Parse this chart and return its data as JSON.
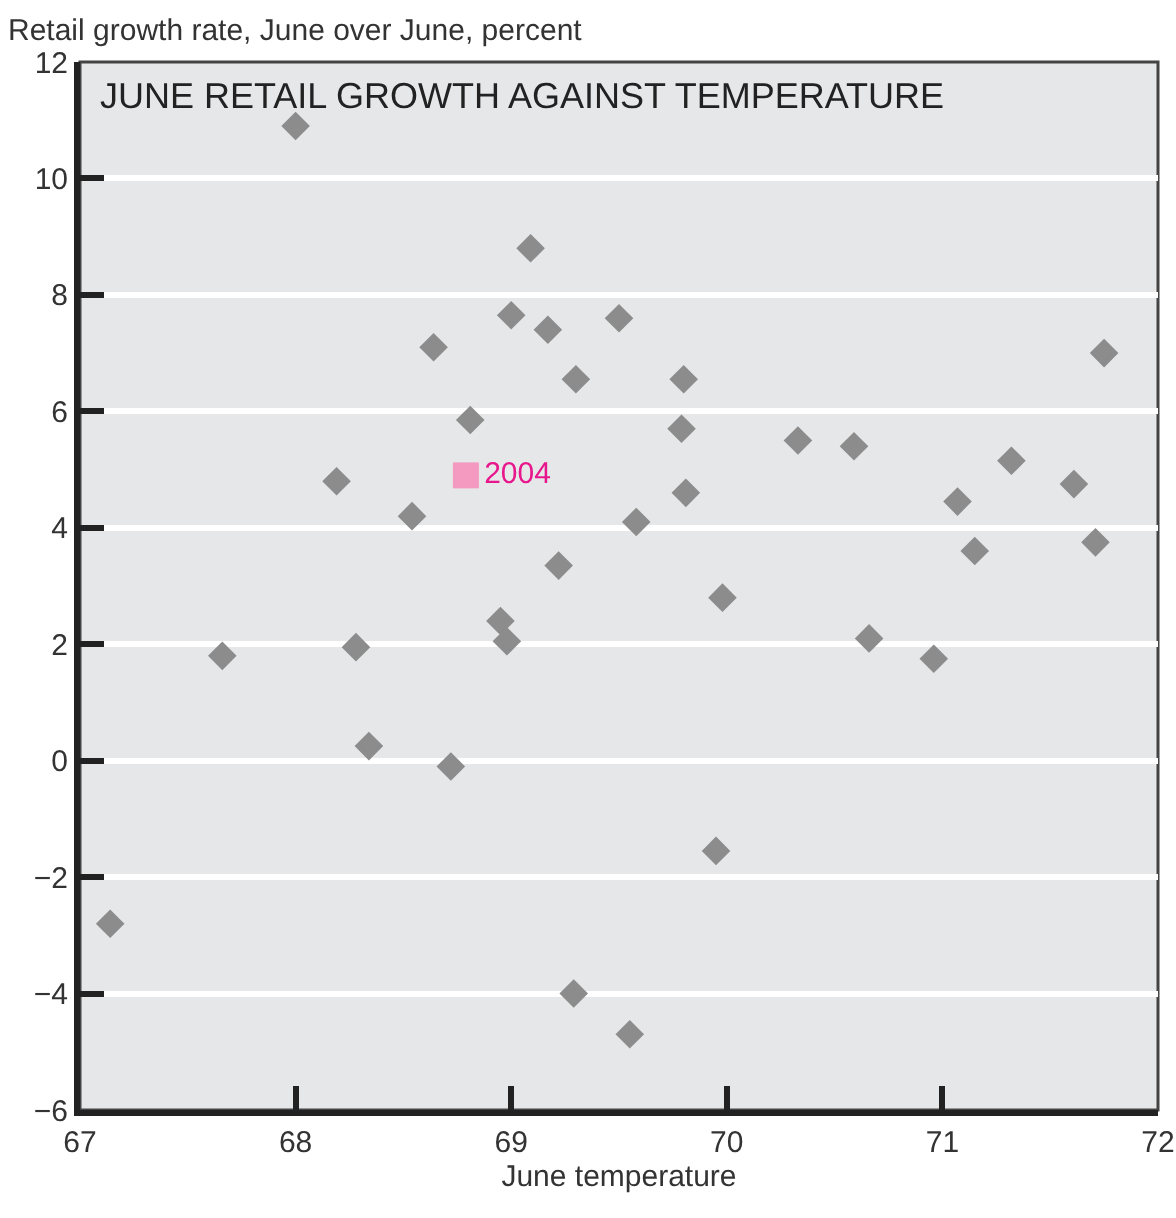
{
  "chart_data": {
    "type": "scatter",
    "title": "JUNE RETAIL GROWTH AGAINST TEMPERATURE",
    "xlabel": "June temperature",
    "ylabel": "Retail growth rate, June over June, percent",
    "xlim": [
      67,
      72
    ],
    "xticks": [
      67,
      68,
      69,
      70,
      71,
      72
    ],
    "ylim": [
      -6,
      12
    ],
    "yticks": [
      -6,
      -4,
      -2,
      0,
      2,
      4,
      6,
      8,
      10,
      12
    ],
    "grid": "y",
    "legend": false,
    "series": [
      {
        "color": "#8c8c8c",
        "marker": "diamond",
        "x": [
          67.14,
          67.66,
          68.0,
          68.19,
          68.28,
          68.34,
          68.54,
          68.64,
          68.72,
          68.81,
          68.95,
          68.98,
          69.0,
          69.09,
          69.17,
          69.22,
          69.29,
          69.3,
          69.5,
          69.55,
          69.58,
          69.8,
          69.79,
          69.81,
          69.95,
          69.98,
          70.33,
          70.59,
          70.66,
          70.96,
          71.07,
          71.15,
          71.32,
          71.61,
          71.71,
          71.75
        ],
        "values": [
          -2.8,
          1.8,
          10.9,
          4.8,
          1.95,
          0.25,
          4.2,
          7.1,
          -0.1,
          5.85,
          2.4,
          2.05,
          7.65,
          8.8,
          7.4,
          3.35,
          -4.0,
          6.55,
          7.6,
          -4.7,
          4.1,
          6.55,
          5.7,
          4.6,
          -1.55,
          2.8,
          5.5,
          5.4,
          2.1,
          1.75,
          4.45,
          3.6,
          5.15,
          4.75,
          3.75,
          7.0
        ]
      },
      {
        "name": "2004",
        "color": "#f49ac1",
        "marker": "square",
        "x": [
          68.79
        ],
        "values": [
          4.9
        ]
      }
    ]
  }
}
